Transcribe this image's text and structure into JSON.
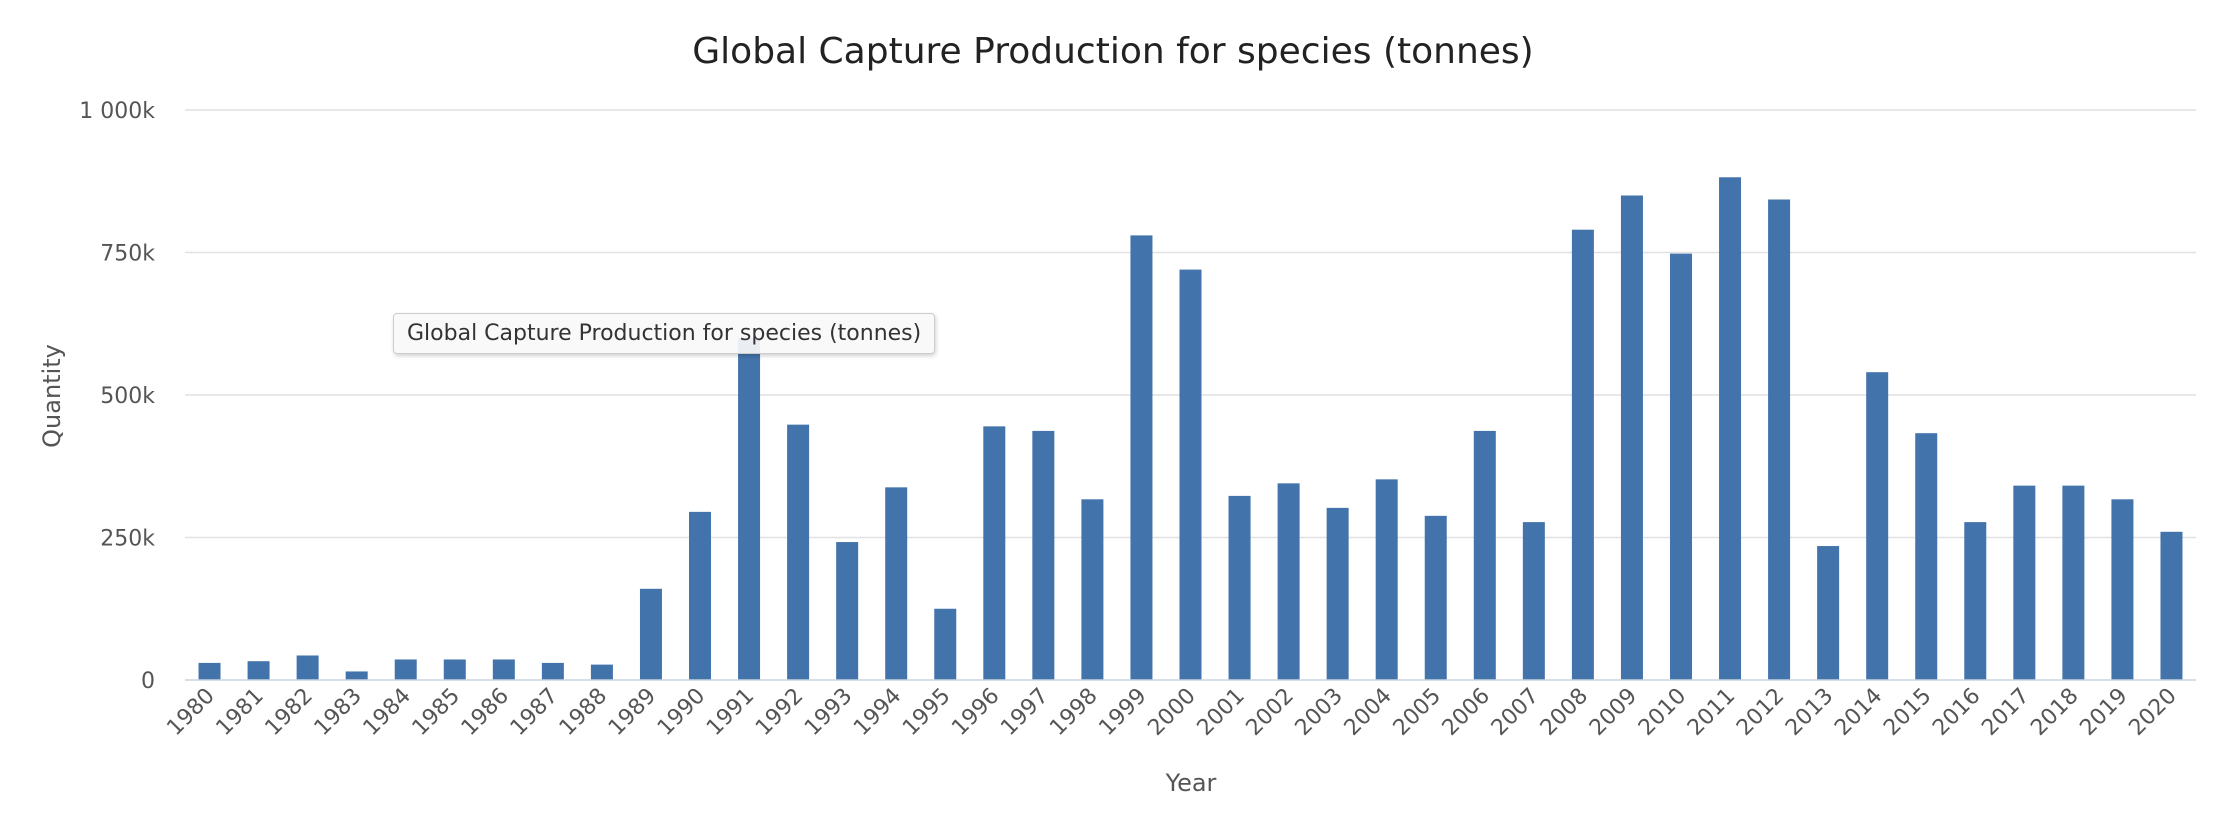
{
  "chart_data": {
    "type": "bar",
    "title": "Global Capture Production for species (tonnes)",
    "xlabel": "Year",
    "ylabel": "Quantity",
    "ylim": [
      0,
      1000000
    ],
    "yticks": [
      {
        "value": 0,
        "label": "0"
      },
      {
        "value": 250000,
        "label": "250k"
      },
      {
        "value": 500000,
        "label": "500k"
      },
      {
        "value": 750000,
        "label": "750k"
      },
      {
        "value": 1000000,
        "label": "1 000k"
      }
    ],
    "grid": true,
    "legend": "none",
    "categories": [
      "1980",
      "1981",
      "1982",
      "1983",
      "1984",
      "1985",
      "1986",
      "1987",
      "1988",
      "1989",
      "1990",
      "1991",
      "1992",
      "1993",
      "1994",
      "1995",
      "1996",
      "1997",
      "1998",
      "1999",
      "2000",
      "2001",
      "2002",
      "2003",
      "2004",
      "2005",
      "2006",
      "2007",
      "2008",
      "2009",
      "2010",
      "2011",
      "2012",
      "2013",
      "2014",
      "2015",
      "2016",
      "2017",
      "2018",
      "2019",
      "2020"
    ],
    "series": [
      {
        "color": "#4273ab",
        "values": [
          30000,
          33000,
          43000,
          15000,
          36000,
          36000,
          36000,
          30000,
          27000,
          160000,
          295000,
          600000,
          448000,
          242000,
          338000,
          125000,
          445000,
          437000,
          317000,
          780000,
          720000,
          323000,
          345000,
          302000,
          352000,
          288000,
          437000,
          277000,
          790000,
          850000,
          748000,
          882000,
          843000,
          235000,
          540000,
          433000,
          277000,
          341000,
          341000,
          317000,
          260000
        ]
      }
    ]
  },
  "tooltip": {
    "text": "Global Capture Production for species (tonnes)"
  }
}
